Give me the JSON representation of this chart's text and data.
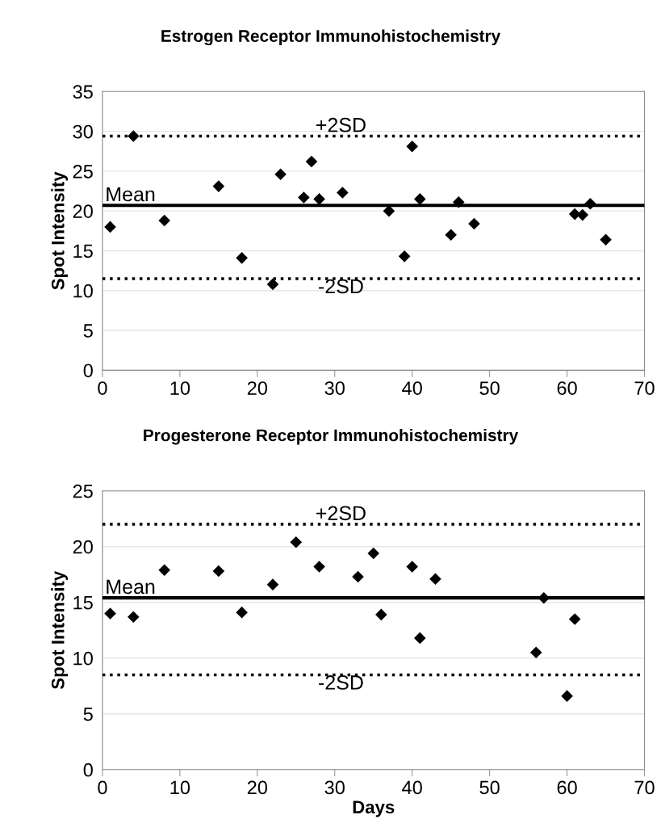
{
  "chart_data": [
    {
      "type": "scatter",
      "title": "Estrogen Receptor Immunohistochemistry",
      "ylabel": "Spot Intensity",
      "x": [
        1,
        4,
        8,
        15,
        18,
        22,
        23,
        26,
        27,
        28,
        31,
        37,
        39,
        40,
        41,
        45,
        46,
        48,
        61,
        62,
        63,
        65
      ],
      "series": [
        {
          "color": "#000000",
          "values": [
            18,
            29.4,
            18.8,
            23.1,
            14.1,
            10.8,
            24.6,
            21.7,
            26.2,
            21.5,
            22.3,
            20.0,
            14.3,
            28.1,
            21.5,
            17.0,
            21.1,
            18.4,
            19.6,
            19.5,
            20.9,
            16.4
          ]
        }
      ],
      "marker": "diamond",
      "xlim": [
        0,
        70
      ],
      "xticks": [
        0,
        10,
        20,
        30,
        40,
        50,
        60,
        70
      ],
      "ylim": [
        0,
        35
      ],
      "yticks": [
        0,
        5,
        10,
        15,
        20,
        25,
        30,
        35
      ],
      "grid": "y",
      "ref_lines": [
        {
          "axis": "y",
          "value": 29.4,
          "label": "+2SD",
          "line_style": "dotted",
          "color": "#000000"
        },
        {
          "axis": "y",
          "value": 20.7,
          "label": "Mean",
          "line_style": "solid",
          "color": "#000000"
        },
        {
          "axis": "y",
          "value": 11.5,
          "label": "-2SD",
          "line_style": "dotted",
          "color": "#000000"
        }
      ]
    },
    {
      "type": "scatter",
      "title": "Progesterone Receptor Immunohistochemistry",
      "ylabel": "Spot Intensity",
      "xlabel": "Days",
      "x": [
        1,
        4,
        8,
        15,
        18,
        22,
        25,
        28,
        33,
        35,
        36,
        40,
        41,
        43,
        56,
        57,
        60,
        61
      ],
      "series": [
        {
          "color": "#000000",
          "values": [
            14.0,
            13.7,
            17.9,
            17.8,
            14.1,
            16.6,
            20.4,
            18.2,
            17.3,
            19.4,
            13.9,
            18.2,
            11.8,
            17.1,
            10.5,
            15.4,
            6.6,
            13.5
          ]
        }
      ],
      "marker": "diamond",
      "xlim": [
        0,
        70
      ],
      "xticks": [
        0,
        10,
        20,
        30,
        40,
        50,
        60,
        70
      ],
      "ylim": [
        0,
        25
      ],
      "yticks": [
        0,
        5,
        10,
        15,
        20,
        25
      ],
      "grid": "y",
      "ref_lines": [
        {
          "axis": "y",
          "value": 22.0,
          "label": "+2SD",
          "line_style": "dotted",
          "color": "#000000"
        },
        {
          "axis": "y",
          "value": 15.4,
          "label": "Mean",
          "line_style": "solid",
          "color": "#000000"
        },
        {
          "axis": "y",
          "value": 8.5,
          "label": "-2SD",
          "line_style": "dotted",
          "color": "#000000"
        }
      ]
    }
  ]
}
